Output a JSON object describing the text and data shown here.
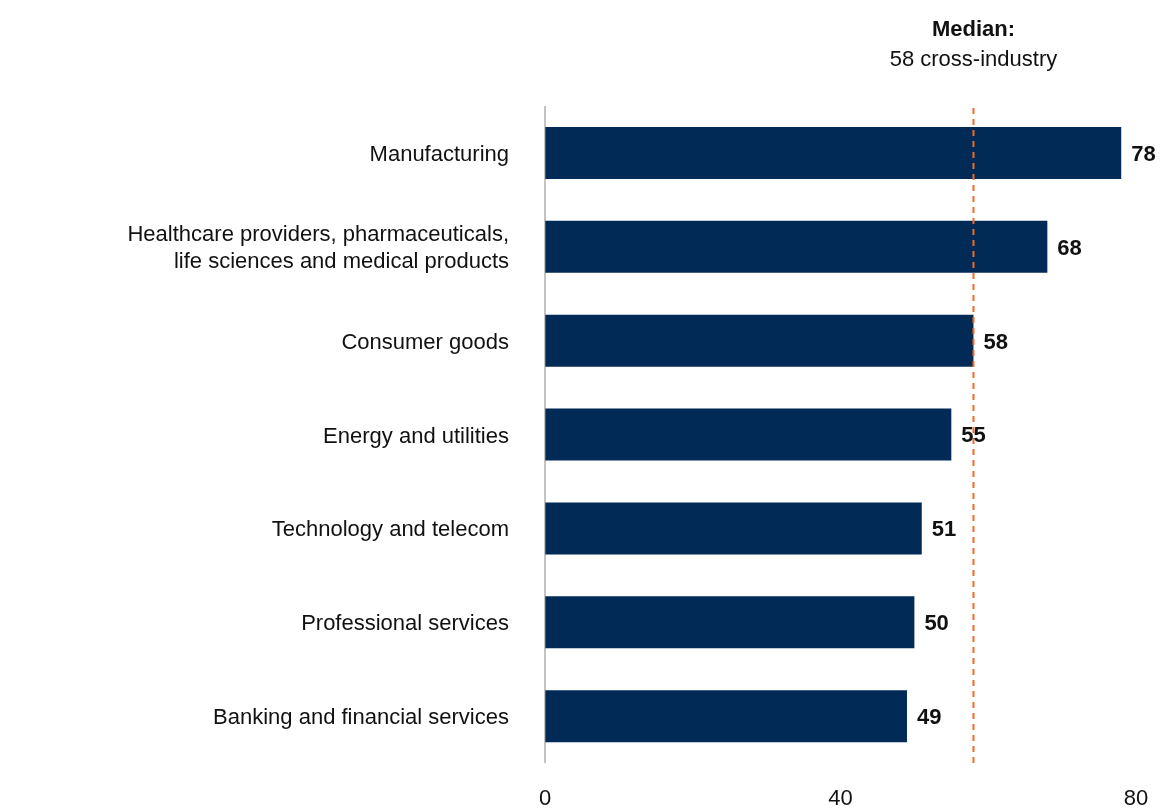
{
  "chart_data": {
    "type": "bar",
    "orientation": "horizontal",
    "categories": [
      "Manufacturing",
      "Healthcare providers, pharmaceuticals, life sciences and medical products",
      "Consumer goods",
      "Energy and utilities",
      "Technology and telecom",
      "Professional services",
      "Banking and financial services"
    ],
    "values": [
      78,
      68,
      58,
      55,
      51,
      50,
      49
    ],
    "color": "#012a57",
    "xlim": [
      0,
      80
    ],
    "xticks": [
      0,
      40,
      80
    ],
    "grid": false,
    "data_labels": true,
    "ref_lines": [
      {
        "axis": "x",
        "value": 58,
        "label": "Median:\n58 cross-industry",
        "color": "#f26b21",
        "line_style": "dashed"
      }
    ]
  }
}
